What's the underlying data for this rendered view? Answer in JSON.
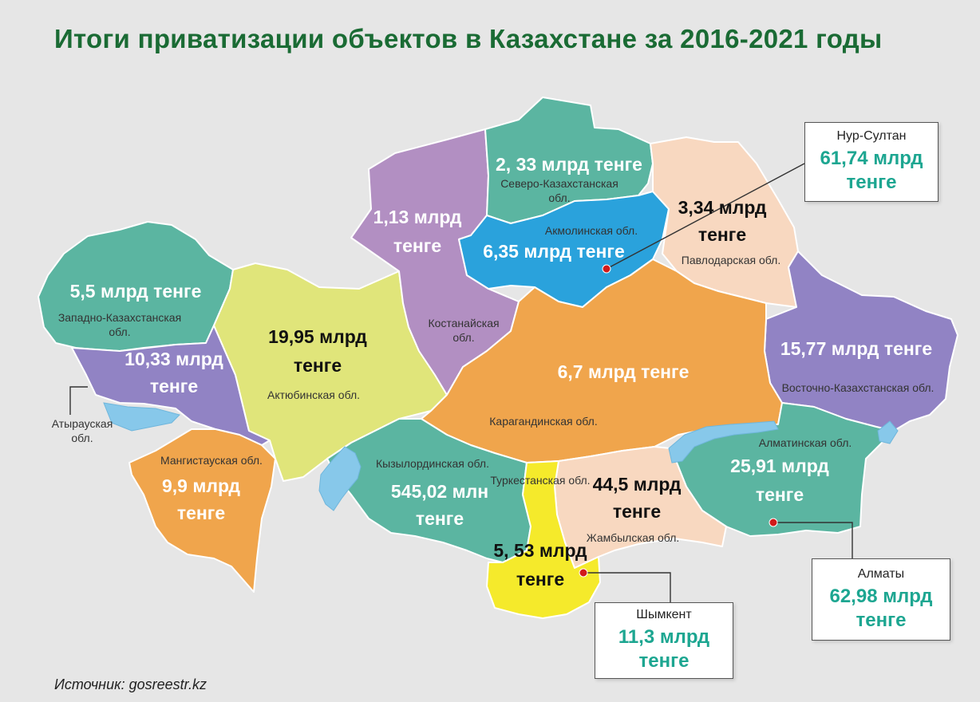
{
  "title": "Итоги приватизации объектов в Казахстане за 2016-2021 годы",
  "source": "Источник: gosreestr.kz",
  "colors": {
    "title": "#1a6b34",
    "teal": "#5bb5a1",
    "purple": "#b28fc2",
    "violet": "#9183c4",
    "blue": "#2aa2dc",
    "peach": "#f8d8c0",
    "orange": "#f0a54c",
    "olive": "#e0e57a",
    "yellow": "#f5ea2b",
    "lake": "#87c8ea",
    "callout_value": "#1da691"
  },
  "regions": {
    "west_kz": {
      "name": "Западно-Казахстанская обл.",
      "value": "5,5 млрд тенге"
    },
    "atyrau": {
      "name": "Атырауская обл.",
      "value_line1": "10,33 млрд",
      "value_line2": "тенге"
    },
    "mangystau": {
      "name": "Мангистауская обл.",
      "value_line1": "9,9 млрд",
      "value_line2": "тенге"
    },
    "aktobe": {
      "name": "Актюбинская обл.",
      "value_line1": "19,95 млрд",
      "value_line2": "тенге"
    },
    "kostanay": {
      "name": "Костанайская обл.",
      "value_line1": "1,13 млрд",
      "value_line2": "тенге"
    },
    "north_kz": {
      "name": "Северо-Казахстанская обл.",
      "value": "2, 33 млрд тенге"
    },
    "akmola": {
      "name": "Акмолинская обл.",
      "value": "6,35 млрд тенге"
    },
    "pavlodar": {
      "name": "Павлодарская обл.",
      "value_line1": "3,34 млрд",
      "value_line2": "тенге"
    },
    "east_kz": {
      "name": "Восточно-Казахстанская обл.",
      "value": "15,77 млрд тенге"
    },
    "karaganda": {
      "name": "Карагандинская обл.",
      "value": "6,7 млрд тенге"
    },
    "kyzylorda": {
      "name": "Кызылординская обл.",
      "value_line1": "545,02 млн",
      "value_line2": "тенге"
    },
    "turkestan": {
      "name": "Туркестанская обл.",
      "value_line1": "5, 53 млрд",
      "value_line2": "тенге"
    },
    "zhambyl": {
      "name": "Жамбылская обл.",
      "value_line1": "44,5 млрд",
      "value_line2": "тенге"
    },
    "almaty_region": {
      "name": "Алматинская обл.",
      "value_line1": "25,91 млрд",
      "value_line2": "тенге"
    }
  },
  "cities": {
    "nur_sultan": {
      "name": "Нур-Султан",
      "value_line1": "61,74 млрд",
      "value_line2": "тенге"
    },
    "almaty": {
      "name": "Алматы",
      "value_line1": "62,98 млрд",
      "value_line2": "тенге"
    },
    "shymkent": {
      "name": "Шымкент",
      "value_line1": "11,3 млрд",
      "value_line2": "тенге"
    }
  }
}
